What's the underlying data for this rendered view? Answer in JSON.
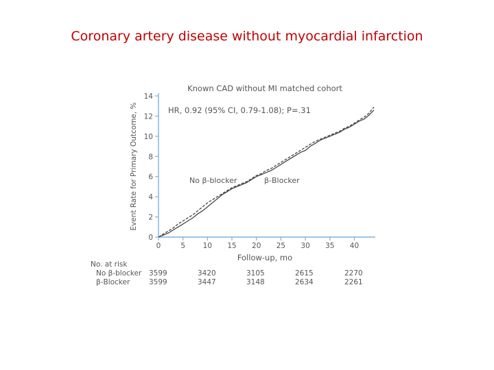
{
  "slide_title": "Coronary artery disease without myocardial infarction",
  "colors": {
    "title": "#c00000",
    "axis": "#7fb2d9",
    "line": "#444444",
    "text": "#555555"
  },
  "chart_data": {
    "type": "line",
    "title": "Known CAD without MI matched cohort",
    "annotation": "HR, 0.92 (95% CI, 0.79-1.08); P=.31",
    "xlabel": "Follow-up, mo",
    "ylabel": "Event Rate for Primary Outcome, %",
    "xlim": [
      0,
      44
    ],
    "ylim": [
      0,
      14
    ],
    "xticks": [
      0,
      5,
      10,
      15,
      20,
      25,
      30,
      35,
      40
    ],
    "yticks": [
      0,
      2,
      4,
      6,
      8,
      10,
      12,
      14
    ],
    "grid": false,
    "series": [
      {
        "name": "No β-blocker",
        "style": "dashed",
        "x": [
          0,
          1,
          2,
          3,
          4,
          5,
          6,
          7,
          8,
          9,
          10,
          11,
          12,
          13,
          14,
          15,
          16,
          17,
          18,
          19,
          20,
          21,
          22,
          23,
          24,
          25,
          26,
          27,
          28,
          29,
          30,
          31,
          32,
          33,
          34,
          35,
          36,
          37,
          38,
          39,
          40,
          41,
          42,
          43,
          44
        ],
        "values": [
          0,
          0.3,
          0.6,
          0.9,
          1.3,
          1.6,
          1.9,
          2.2,
          2.6,
          3.0,
          3.4,
          3.7,
          4.0,
          4.3,
          4.6,
          4.9,
          5.1,
          5.3,
          5.5,
          5.8,
          6.1,
          6.3,
          6.6,
          6.8,
          7.1,
          7.4,
          7.7,
          8.0,
          8.3,
          8.6,
          8.9,
          9.2,
          9.5,
          9.7,
          9.9,
          10.1,
          10.3,
          10.5,
          10.8,
          11.0,
          11.3,
          11.6,
          11.9,
          12.3,
          12.9
        ]
      },
      {
        "name": "β-Blocker",
        "style": "solid",
        "x": [
          0,
          1,
          2,
          3,
          4,
          5,
          6,
          7,
          8,
          9,
          10,
          11,
          12,
          13,
          14,
          15,
          16,
          17,
          18,
          19,
          20,
          21,
          22,
          23,
          24,
          25,
          26,
          27,
          28,
          29,
          30,
          31,
          32,
          33,
          34,
          35,
          36,
          37,
          38,
          39,
          40,
          41,
          42,
          43,
          44
        ],
        "values": [
          0,
          0.2,
          0.4,
          0.7,
          1.0,
          1.3,
          1.6,
          1.9,
          2.3,
          2.6,
          3.0,
          3.4,
          3.8,
          4.2,
          4.5,
          4.8,
          5.0,
          5.2,
          5.4,
          5.7,
          6.0,
          6.2,
          6.4,
          6.6,
          6.9,
          7.2,
          7.5,
          7.8,
          8.1,
          8.4,
          8.6,
          9.0,
          9.3,
          9.6,
          9.8,
          10.0,
          10.2,
          10.4,
          10.7,
          10.9,
          11.2,
          11.5,
          11.7,
          12.1,
          12.6
        ]
      }
    ],
    "line_labels": [
      "No β-blocker",
      "β-Blocker"
    ],
    "at_risk": {
      "header": "No. at risk",
      "rows": [
        {
          "label": "No β-blocker",
          "values": [
            "3599",
            "3420",
            "3105",
            "2615",
            "2270"
          ]
        },
        {
          "label": "β-Blocker",
          "values": [
            "3599",
            "3447",
            "3148",
            "2634",
            "2261"
          ]
        }
      ]
    }
  }
}
